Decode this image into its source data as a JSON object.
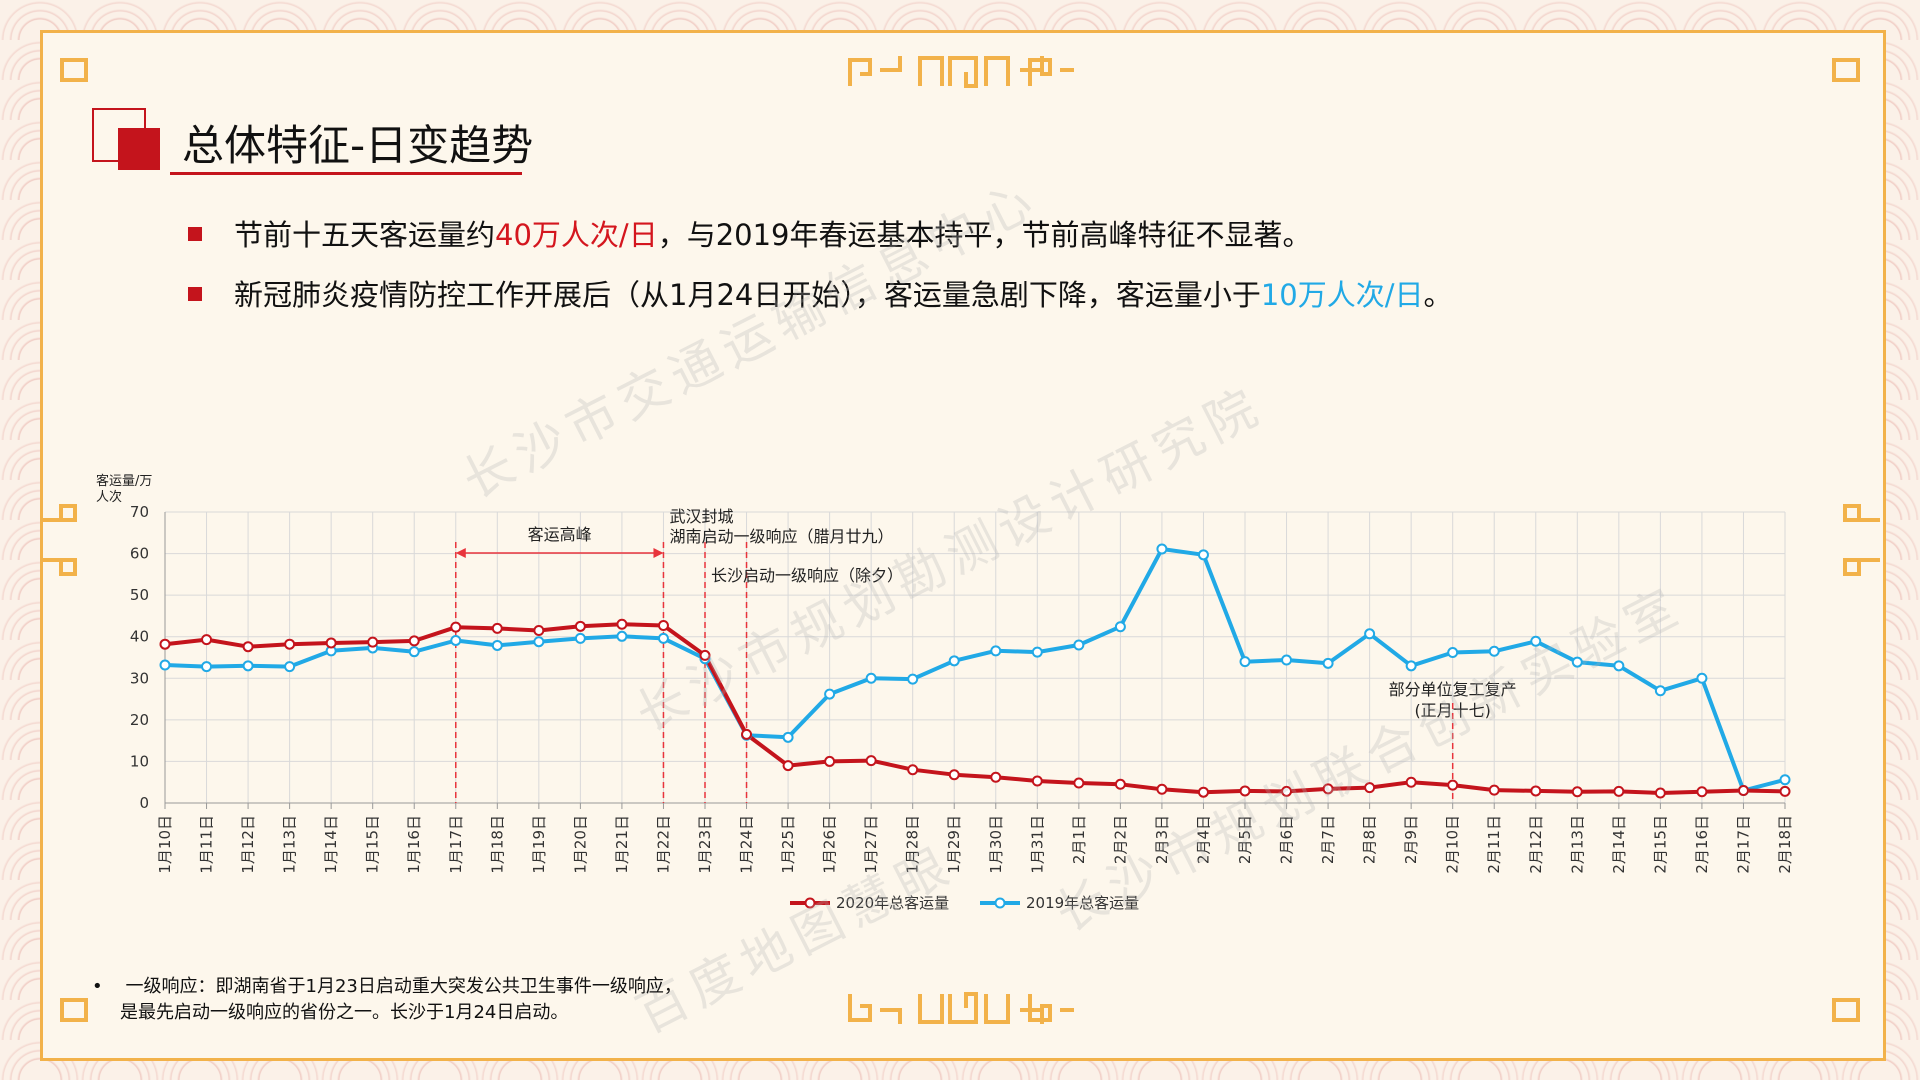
{
  "title": "总体特征-日变趋势",
  "bullets": [
    {
      "pre": "节前十五天客运量约",
      "hl": "40万人次/日",
      "post": "，与2019年春运基本持平，节前高峰特征不显著。"
    },
    {
      "pre": "新冠肺炎疫情防控工作开展后（从1月24日开始），客运量急剧下降，客运量小于",
      "hl": "10万人次/日",
      "post": "。"
    }
  ],
  "footnote": {
    "line1": "一级响应：即湖南省于1月23日启动重大突发公共卫生事件一级响应，",
    "line2": "是最先启动一级响应的省份之一。长沙于1月24日启动。"
  },
  "watermarks": [
    "长沙市交通运输信息中心",
    "长沙市规划勘测设计研究院",
    "长沙市规划联合创新实验室",
    "百度地图慧眼"
  ],
  "colors": {
    "red": "#c4141c",
    "blue": "#21a9e6",
    "accent": "#f2b24a"
  },
  "chart_data": {
    "type": "line",
    "ylabel": "客运量/万人次",
    "ylim": [
      0,
      70
    ],
    "yticks": [
      0,
      10,
      20,
      30,
      40,
      50,
      60,
      70
    ],
    "categories": [
      "1月10日",
      "1月11日",
      "1月12日",
      "1月13日",
      "1月14日",
      "1月15日",
      "1月16日",
      "1月17日",
      "1月18日",
      "1月19日",
      "1月20日",
      "1月21日",
      "1月22日",
      "1月23日",
      "1月24日",
      "1月25日",
      "1月26日",
      "1月27日",
      "1月28日",
      "1月29日",
      "1月30日",
      "1月31日",
      "2月1日",
      "2月2日",
      "2月3日",
      "2月4日",
      "2月5日",
      "2月6日",
      "2月7日",
      "2月8日",
      "2月9日",
      "2月10日",
      "2月11日",
      "2月12日",
      "2月13日",
      "2月14日",
      "2月15日",
      "2月16日",
      "2月17日",
      "2月18日"
    ],
    "series": [
      {
        "name": "2020年总客运量",
        "color": "#c4141c",
        "values": [
          38.2,
          39.3,
          37.6,
          38.2,
          38.5,
          38.7,
          39.0,
          42.3,
          42.0,
          41.5,
          42.5,
          43.0,
          42.7,
          35.5,
          16.5,
          9.0,
          10.0,
          10.2,
          8.0,
          6.8,
          6.2,
          5.3,
          4.8,
          4.5,
          3.3,
          2.6,
          2.9,
          2.8,
          3.4,
          3.7,
          5.0,
          4.3,
          3.1,
          2.9,
          2.7,
          2.8,
          2.4,
          2.7,
          3.0,
          2.8
        ]
      },
      {
        "name": "2019年总客运量",
        "color": "#21a9e6",
        "values": [
          33.2,
          32.8,
          33.0,
          32.8,
          36.6,
          37.3,
          36.4,
          39.1,
          37.9,
          38.8,
          39.6,
          40.1,
          39.6,
          34.7,
          16.3,
          15.8,
          26.2,
          30.0,
          29.8,
          34.2,
          36.6,
          36.3,
          38.0,
          42.4,
          61.1,
          59.7,
          34.0,
          34.4,
          33.6,
          40.7,
          33.0,
          36.2,
          36.5,
          38.9,
          33.9,
          33.0,
          27.0,
          30.0,
          3.0,
          5.6
        ]
      }
    ],
    "annotations": [
      {
        "text": "客运高峰"
      },
      {
        "text": "武汉封城"
      },
      {
        "text": "湖南启动一级响应（腊月廿九）"
      },
      {
        "text": "长沙启动一级响应（除夕）"
      },
      {
        "text": "部分单位复工复产"
      },
      {
        "text": "(正月十七)"
      }
    ],
    "legend_position": "bottom"
  }
}
